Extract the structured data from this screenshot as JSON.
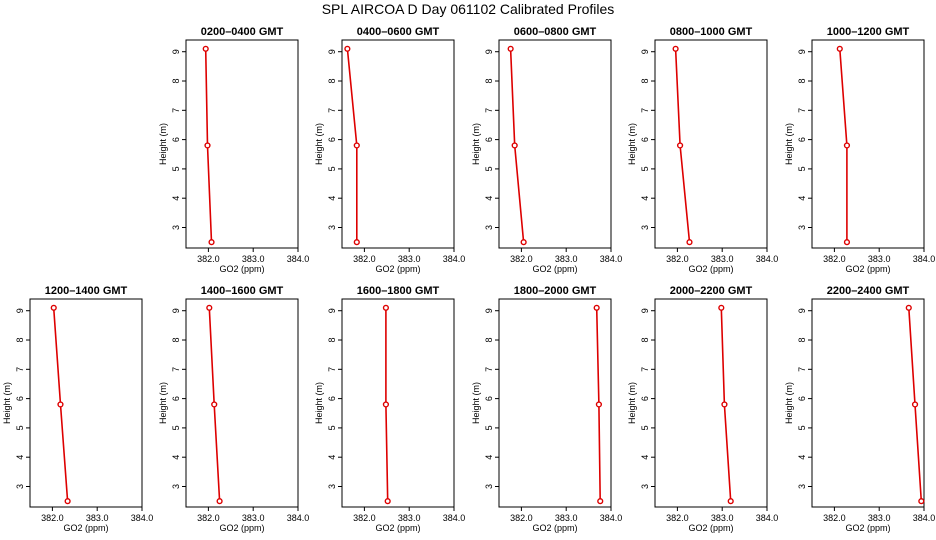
{
  "figure_title": "SPL AIRCOA D  Day 061102  Calibrated Profiles",
  "colors": {
    "series": "#dd0000",
    "axis": "#000000",
    "background": "#ffffff"
  },
  "chart_data": [
    {
      "type": "line",
      "title": "0200–0400 GMT",
      "xlabel": "GO2 (ppm)",
      "ylabel": "Height (m)",
      "xlim": [
        381.5,
        384.0
      ],
      "ylim": [
        2.3,
        9.4
      ],
      "xticks": [
        382.0,
        383.0,
        384.0
      ],
      "xtick_labels": [
        "382.0",
        "383.0",
        "384.0"
      ],
      "yticks": [
        3,
        4,
        5,
        6,
        7,
        8,
        9
      ],
      "ytick_labels": [
        "3",
        "4",
        "5",
        "6",
        "7",
        "8",
        "9"
      ],
      "series": [
        {
          "x": [
            381.94,
            381.98,
            382.07
          ],
          "y": [
            9.1,
            5.8,
            2.5
          ]
        }
      ]
    },
    {
      "type": "line",
      "title": "0400–0600 GMT",
      "xlabel": "GO2 (ppm)",
      "ylabel": "Height (m)",
      "xlim": [
        381.5,
        384.0
      ],
      "ylim": [
        2.3,
        9.4
      ],
      "xticks": [
        382.0,
        383.0,
        384.0
      ],
      "xtick_labels": [
        "382.0",
        "383.0",
        "384.0"
      ],
      "yticks": [
        3,
        4,
        5,
        6,
        7,
        8,
        9
      ],
      "ytick_labels": [
        "3",
        "4",
        "5",
        "6",
        "7",
        "8",
        "9"
      ],
      "series": [
        {
          "x": [
            381.62,
            381.83,
            381.83
          ],
          "y": [
            9.1,
            5.8,
            2.5
          ]
        }
      ]
    },
    {
      "type": "line",
      "title": "0600–0800 GMT",
      "xlabel": "GO2 (ppm)",
      "ylabel": "Height (m)",
      "xlim": [
        381.5,
        384.0
      ],
      "ylim": [
        2.3,
        9.4
      ],
      "xticks": [
        382.0,
        383.0,
        384.0
      ],
      "xtick_labels": [
        "382.0",
        "383.0",
        "384.0"
      ],
      "yticks": [
        3,
        4,
        5,
        6,
        7,
        8,
        9
      ],
      "ytick_labels": [
        "3",
        "4",
        "5",
        "6",
        "7",
        "8",
        "9"
      ],
      "series": [
        {
          "x": [
            381.76,
            381.85,
            382.05
          ],
          "y": [
            9.1,
            5.8,
            2.5
          ]
        }
      ]
    },
    {
      "type": "line",
      "title": "0800–1000 GMT",
      "xlabel": "GO2 (ppm)",
      "ylabel": "Height (m)",
      "xlim": [
        381.5,
        384.0
      ],
      "ylim": [
        2.3,
        9.4
      ],
      "xticks": [
        382.0,
        383.0,
        384.0
      ],
      "xtick_labels": [
        "382.0",
        "383.0",
        "384.0"
      ],
      "yticks": [
        3,
        4,
        5,
        6,
        7,
        8,
        9
      ],
      "ytick_labels": [
        "3",
        "4",
        "5",
        "6",
        "7",
        "8",
        "9"
      ],
      "series": [
        {
          "x": [
            381.96,
            382.06,
            382.27
          ],
          "y": [
            9.1,
            5.8,
            2.5
          ]
        }
      ]
    },
    {
      "type": "line",
      "title": "1000–1200 GMT",
      "xlabel": "GO2 (ppm)",
      "ylabel": "Height (m)",
      "xlim": [
        381.5,
        384.0
      ],
      "ylim": [
        2.3,
        9.4
      ],
      "xticks": [
        382.0,
        383.0,
        384.0
      ],
      "xtick_labels": [
        "382.0",
        "383.0",
        "384.0"
      ],
      "yticks": [
        3,
        4,
        5,
        6,
        7,
        8,
        9
      ],
      "ytick_labels": [
        "3",
        "4",
        "5",
        "6",
        "7",
        "8",
        "9"
      ],
      "series": [
        {
          "x": [
            382.12,
            382.28,
            382.28
          ],
          "y": [
            9.1,
            5.8,
            2.5
          ]
        }
      ]
    },
    {
      "type": "line",
      "title": "1200–1400 GMT",
      "xlabel": "GO2 (ppm)",
      "ylabel": "Height (m)",
      "xlim": [
        381.5,
        384.0
      ],
      "ylim": [
        2.3,
        9.4
      ],
      "xticks": [
        382.0,
        383.0,
        384.0
      ],
      "xtick_labels": [
        "382.0",
        "383.0",
        "384.0"
      ],
      "yticks": [
        3,
        4,
        5,
        6,
        7,
        8,
        9
      ],
      "ytick_labels": [
        "3",
        "4",
        "5",
        "6",
        "7",
        "8",
        "9"
      ],
      "series": [
        {
          "x": [
            382.03,
            382.18,
            382.34
          ],
          "y": [
            9.1,
            5.8,
            2.5
          ]
        }
      ]
    },
    {
      "type": "line",
      "title": "1400–1600 GMT",
      "xlabel": "GO2 (ppm)",
      "ylabel": "Height (m)",
      "xlim": [
        381.5,
        384.0
      ],
      "ylim": [
        2.3,
        9.4
      ],
      "xticks": [
        382.0,
        383.0,
        384.0
      ],
      "xtick_labels": [
        "382.0",
        "383.0",
        "384.0"
      ],
      "yticks": [
        3,
        4,
        5,
        6,
        7,
        8,
        9
      ],
      "ytick_labels": [
        "3",
        "4",
        "5",
        "6",
        "7",
        "8",
        "9"
      ],
      "series": [
        {
          "x": [
            382.02,
            382.13,
            382.25
          ],
          "y": [
            9.1,
            5.8,
            2.5
          ]
        }
      ]
    },
    {
      "type": "line",
      "title": "1600–1800 GMT",
      "xlabel": "GO2 (ppm)",
      "ylabel": "Height (m)",
      "xlim": [
        381.5,
        384.0
      ],
      "ylim": [
        2.3,
        9.4
      ],
      "xticks": [
        382.0,
        383.0,
        384.0
      ],
      "xtick_labels": [
        "382.0",
        "383.0",
        "384.0"
      ],
      "yticks": [
        3,
        4,
        5,
        6,
        7,
        8,
        9
      ],
      "ytick_labels": [
        "3",
        "4",
        "5",
        "6",
        "7",
        "8",
        "9"
      ],
      "series": [
        {
          "x": [
            382.48,
            382.48,
            382.52
          ],
          "y": [
            9.1,
            5.8,
            2.5
          ]
        }
      ]
    },
    {
      "type": "line",
      "title": "1800–2000 GMT",
      "xlabel": "GO2 (ppm)",
      "ylabel": "Height (m)",
      "xlim": [
        381.5,
        384.0
      ],
      "ylim": [
        2.3,
        9.4
      ],
      "xticks": [
        382.0,
        383.0,
        384.0
      ],
      "xtick_labels": [
        "382.0",
        "383.0",
        "384.0"
      ],
      "yticks": [
        3,
        4,
        5,
        6,
        7,
        8,
        9
      ],
      "ytick_labels": [
        "3",
        "4",
        "5",
        "6",
        "7",
        "8",
        "9"
      ],
      "series": [
        {
          "x": [
            383.68,
            383.73,
            383.76
          ],
          "y": [
            9.1,
            5.8,
            2.5
          ]
        }
      ]
    },
    {
      "type": "line",
      "title": "2000–2200 GMT",
      "xlabel": "GO2 (ppm)",
      "ylabel": "Height (m)",
      "xlim": [
        381.5,
        384.0
      ],
      "ylim": [
        2.3,
        9.4
      ],
      "xticks": [
        382.0,
        383.0,
        384.0
      ],
      "xtick_labels": [
        "382.0",
        "383.0",
        "384.0"
      ],
      "yticks": [
        3,
        4,
        5,
        6,
        7,
        8,
        9
      ],
      "ytick_labels": [
        "3",
        "4",
        "5",
        "6",
        "7",
        "8",
        "9"
      ],
      "series": [
        {
          "x": [
            382.98,
            383.05,
            383.19
          ],
          "y": [
            9.1,
            5.8,
            2.5
          ]
        }
      ]
    },
    {
      "type": "line",
      "title": "2200–2400 GMT",
      "xlabel": "GO2 (ppm)",
      "ylabel": "Height (m)",
      "xlim": [
        381.5,
        384.0
      ],
      "ylim": [
        2.3,
        9.4
      ],
      "xticks": [
        382.0,
        383.0,
        384.0
      ],
      "xtick_labels": [
        "382.0",
        "383.0",
        "384.0"
      ],
      "yticks": [
        3,
        4,
        5,
        6,
        7,
        8,
        9
      ],
      "ytick_labels": [
        "3",
        "4",
        "5",
        "6",
        "7",
        "8",
        "9"
      ],
      "series": [
        {
          "x": [
            383.66,
            383.8,
            383.94
          ],
          "y": [
            9.1,
            5.8,
            2.5
          ]
        }
      ]
    }
  ]
}
